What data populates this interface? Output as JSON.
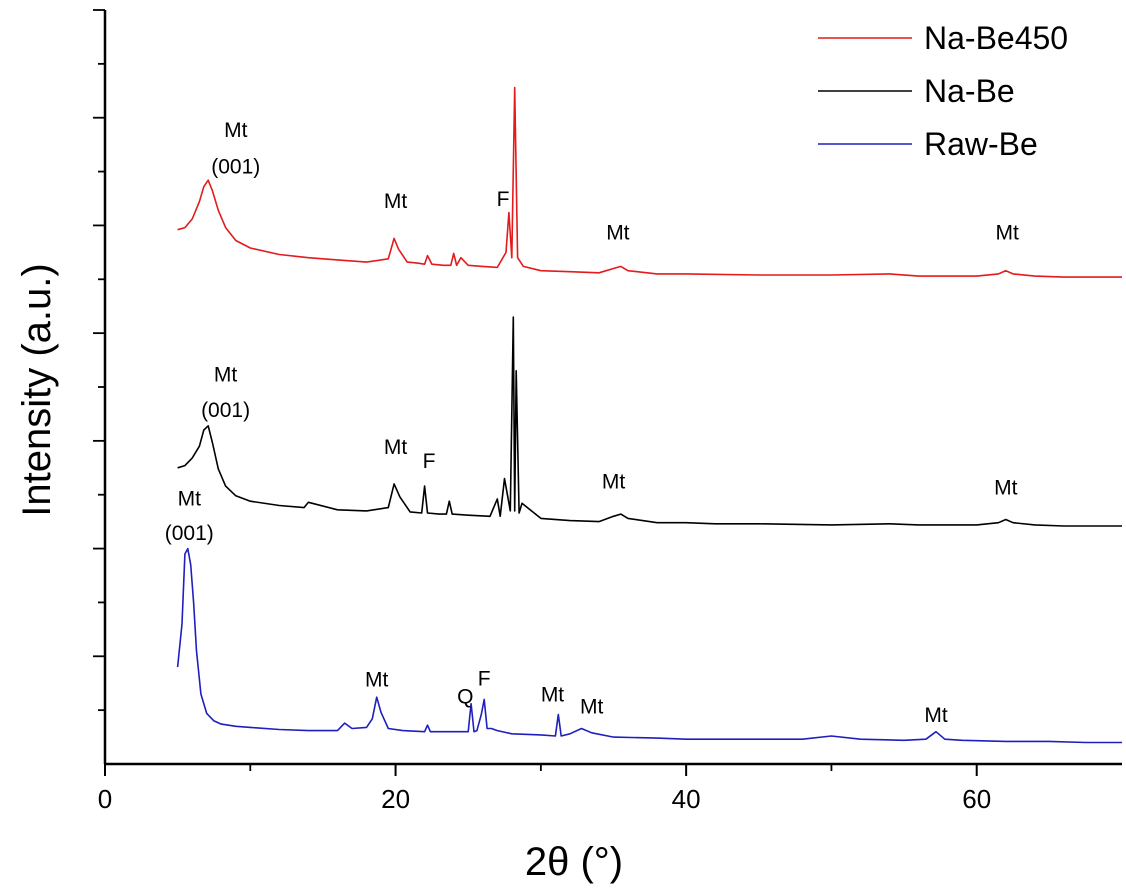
{
  "chart_data": {
    "type": "line",
    "xlabel": "2θ (°)",
    "ylabel": "Intensity (a.u.)",
    "xlim": [
      0,
      70
    ],
    "ylim": [
      0,
      7
    ],
    "x_ticks": [
      0,
      20,
      40,
      60
    ],
    "x_tick_labels": [
      "0",
      "20",
      "40",
      "60"
    ],
    "y_ticks_labeled": false,
    "grid": false,
    "legend_position": "top-right",
    "series": [
      {
        "name": "Na-Be450",
        "color": "#e41a1c",
        "x": [
          5.0,
          5.5,
          6.0,
          6.5,
          6.8,
          7.1,
          7.4,
          7.8,
          8.3,
          9.0,
          10,
          12,
          14,
          16,
          18,
          19.5,
          19.9,
          20.2,
          20.8,
          21.5,
          22.0,
          22.2,
          22.5,
          23.3,
          23.8,
          24.0,
          24.2,
          24.5,
          25,
          26,
          27,
          27.6,
          27.8,
          28.0,
          28.2,
          28.4,
          28.8,
          30,
          32,
          34,
          35.0,
          35.5,
          36.0,
          38,
          40,
          45,
          50,
          54,
          56,
          60,
          61.5,
          62.0,
          62.5,
          64,
          66,
          70
        ],
        "y": [
          4.96,
          4.98,
          5.06,
          5.22,
          5.36,
          5.42,
          5.32,
          5.14,
          4.98,
          4.86,
          4.79,
          4.73,
          4.7,
          4.68,
          4.66,
          4.69,
          4.88,
          4.78,
          4.66,
          4.65,
          4.64,
          4.72,
          4.64,
          4.63,
          4.63,
          4.74,
          4.63,
          4.7,
          4.63,
          4.62,
          4.61,
          4.75,
          5.12,
          4.7,
          6.28,
          4.7,
          4.62,
          4.58,
          4.57,
          4.56,
          4.6,
          4.62,
          4.58,
          4.55,
          4.55,
          4.54,
          4.54,
          4.55,
          4.53,
          4.53,
          4.55,
          4.58,
          4.55,
          4.53,
          4.52,
          4.52
        ]
      },
      {
        "name": "Na-Be",
        "color": "#000000",
        "x": [
          5.0,
          5.5,
          6.0,
          6.5,
          6.8,
          7.1,
          7.4,
          7.8,
          8.3,
          9.0,
          10,
          12,
          13.7,
          14,
          16,
          18,
          19.5,
          19.9,
          20.3,
          21.0,
          21.8,
          22.0,
          22.2,
          23.0,
          23.5,
          23.7,
          23.9,
          25,
          26.5,
          27.0,
          27.2,
          27.5,
          27.7,
          27.9,
          28.1,
          28.2,
          28.3,
          28.5,
          28.7,
          30,
          32,
          34,
          35.0,
          35.5,
          36.0,
          38,
          40,
          42,
          45,
          50,
          54,
          56,
          60,
          61.5,
          62.0,
          62.5,
          64,
          66,
          70
        ],
        "y": [
          2.75,
          2.77,
          2.84,
          2.95,
          3.1,
          3.14,
          2.98,
          2.74,
          2.58,
          2.49,
          2.44,
          2.4,
          2.38,
          2.43,
          2.36,
          2.35,
          2.38,
          2.6,
          2.48,
          2.34,
          2.33,
          2.58,
          2.33,
          2.32,
          2.32,
          2.44,
          2.32,
          2.31,
          2.3,
          2.46,
          2.3,
          2.65,
          2.5,
          2.35,
          4.15,
          2.35,
          3.65,
          2.33,
          2.42,
          2.28,
          2.26,
          2.25,
          2.3,
          2.32,
          2.28,
          2.24,
          2.24,
          2.23,
          2.23,
          2.22,
          2.23,
          2.22,
          2.22,
          2.24,
          2.27,
          2.24,
          2.22,
          2.21,
          2.21
        ]
      },
      {
        "name": "Raw-Be",
        "color": "#1f1fbf",
        "x": [
          5.0,
          5.3,
          5.5,
          5.7,
          5.9,
          6.1,
          6.3,
          6.6,
          7.0,
          7.5,
          8.0,
          9,
          10,
          12,
          14,
          16,
          16.5,
          17,
          18,
          18.4,
          18.7,
          19.0,
          19.5,
          20.5,
          22.0,
          22.2,
          22.4,
          24,
          25.0,
          25.2,
          25.4,
          25.6,
          25.9,
          26.1,
          26.3,
          26.6,
          27,
          28,
          30,
          31.0,
          31.2,
          31.4,
          32,
          32.8,
          33.5,
          35,
          38,
          40,
          45,
          48,
          50,
          52,
          55,
          56.5,
          57.2,
          57.8,
          59,
          62,
          65,
          67.5,
          69,
          70
        ],
        "y": [
          0.9,
          1.3,
          1.95,
          2.0,
          1.85,
          1.5,
          1.05,
          0.65,
          0.47,
          0.4,
          0.37,
          0.35,
          0.34,
          0.32,
          0.31,
          0.31,
          0.38,
          0.33,
          0.34,
          0.42,
          0.62,
          0.48,
          0.33,
          0.31,
          0.3,
          0.36,
          0.3,
          0.3,
          0.3,
          0.56,
          0.3,
          0.31,
          0.46,
          0.6,
          0.33,
          0.33,
          0.31,
          0.28,
          0.27,
          0.26,
          0.46,
          0.26,
          0.28,
          0.33,
          0.29,
          0.25,
          0.24,
          0.23,
          0.23,
          0.23,
          0.26,
          0.23,
          0.22,
          0.23,
          0.3,
          0.23,
          0.22,
          0.21,
          0.21,
          0.2,
          0.2,
          0.2
        ]
      }
    ],
    "annotations": [
      {
        "text": "Mt",
        "x": 9.0,
        "y": 5.82
      },
      {
        "text": "(001)",
        "x": 9.0,
        "y": 5.48
      },
      {
        "text": "Mt",
        "x": 20.0,
        "y": 5.16
      },
      {
        "text": "F",
        "x": 27.4,
        "y": 5.18
      },
      {
        "text": "Mt",
        "x": 35.3,
        "y": 4.87
      },
      {
        "text": "Mt",
        "x": 62.1,
        "y": 4.87
      },
      {
        "text": "Mt",
        "x": 8.3,
        "y": 3.55
      },
      {
        "text": "(001)",
        "x": 8.3,
        "y": 3.22
      },
      {
        "text": "Mt",
        "x": 20.0,
        "y": 2.88
      },
      {
        "text": "F",
        "x": 22.3,
        "y": 2.75
      },
      {
        "text": "Mt",
        "x": 35.0,
        "y": 2.56
      },
      {
        "text": "Mt",
        "x": 62.0,
        "y": 2.5
      },
      {
        "text": "Mt",
        "x": 5.8,
        "y": 2.4
      },
      {
        "text": "(001)",
        "x": 5.8,
        "y": 2.08
      },
      {
        "text": "Mt",
        "x": 18.7,
        "y": 0.72
      },
      {
        "text": "Q",
        "x": 24.8,
        "y": 0.56
      },
      {
        "text": "F",
        "x": 26.1,
        "y": 0.73
      },
      {
        "text": "Mt",
        "x": 30.8,
        "y": 0.58
      },
      {
        "text": "Mt",
        "x": 33.5,
        "y": 0.47
      },
      {
        "text": "Mt",
        "x": 57.2,
        "y": 0.39
      }
    ]
  }
}
